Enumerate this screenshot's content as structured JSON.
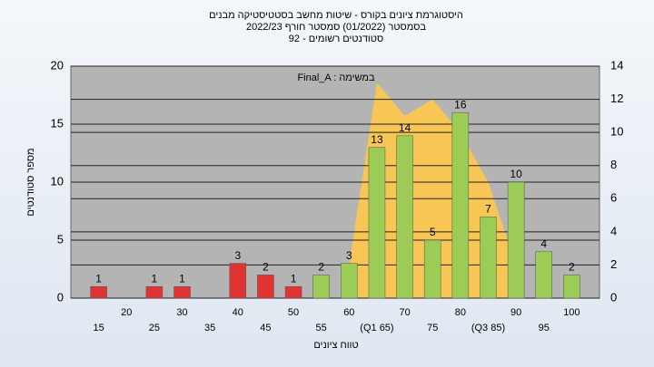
{
  "chart_data": {
    "type": "bar",
    "title_lines": [
      "היסטוגרמת ציונים בקורס - שיטות מחשב בסטטיסטיקה מבנים",
      "בסמסטר (01/2022) סמסטר חורף 2022/23",
      "סטודנטים רשומים - 92"
    ],
    "annotation": "Final_A : במשימה",
    "x_label": "טווח ציונים",
    "y_label": "מספר סטודנטים",
    "categories": [
      "15",
      "20",
      "25",
      "30",
      "35",
      "40",
      "45",
      "50",
      "55",
      "60",
      "(Q1 65)",
      "70",
      "75",
      "80",
      "(Q3 85)",
      "90",
      "95",
      "100"
    ],
    "series": [
      {
        "type": "bar",
        "values": [
          1,
          0,
          1,
          1,
          0,
          3,
          2,
          1,
          2,
          3,
          13,
          14,
          5,
          16,
          7,
          10,
          4,
          2
        ],
        "colors": [
          "#e03434",
          "#e03434",
          "#e03434",
          "#e03434",
          "#e03434",
          "#e03434",
          "#e03434",
          "#e03434",
          "#9ccc55",
          "#9ccc55",
          "#9ccc55",
          "#9ccc55",
          "#9ccc55",
          "#9ccc55",
          "#9ccc55",
          "#9ccc55",
          "#9ccc55",
          "#9ccc55"
        ]
      },
      {
        "type": "area",
        "axis": "y2",
        "color": "#ffc84a",
        "values": [
          null,
          null,
          null,
          null,
          null,
          null,
          null,
          null,
          null,
          2,
          13,
          11,
          12,
          10,
          7,
          2,
          null,
          null
        ]
      }
    ],
    "ylim": [
      0,
      20
    ],
    "yticks": [
      0,
      5,
      10,
      15,
      20
    ],
    "y2lim": [
      0,
      14
    ],
    "y2ticks": [
      0,
      2,
      4,
      6,
      8,
      10,
      12,
      14
    ],
    "grid": true
  }
}
